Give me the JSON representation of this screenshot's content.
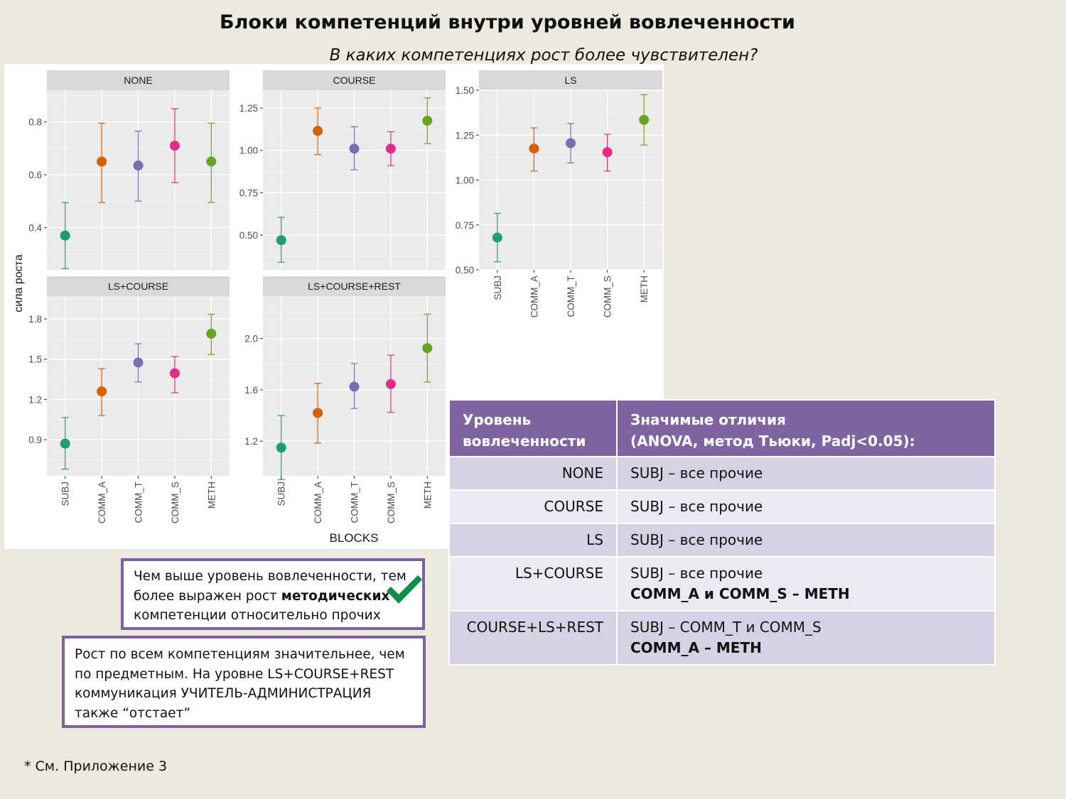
{
  "slide": {
    "title": "Блоки компетенций внутри уровней вовлеченности",
    "subtitle": "В каких компетенциях рост более чувствителен?",
    "footnote": "* См. Приложение 3"
  },
  "chart_data": {
    "type": "scatter",
    "subtype": "point-with-errorbars, faceted",
    "ylabel": "сила роста",
    "xlabel": "BLOCKS",
    "categories": [
      "SUBJ",
      "COMM_A",
      "COMM_T",
      "COMM_S",
      "METH"
    ],
    "colors": {
      "SUBJ": "#1b9e77",
      "COMM_A": "#d95f02",
      "COMM_T": "#7570b3",
      "COMM_S": "#e7298a",
      "METH": "#66a61e"
    },
    "grid": true,
    "facets": [
      {
        "name": "NONE",
        "ylim": [
          0.24,
          0.92
        ],
        "yticks": [
          "0.4",
          "0.6",
          "0.8"
        ],
        "means": [
          0.37,
          0.65,
          0.635,
          0.71,
          0.65
        ],
        "lower": [
          0.245,
          0.495,
          0.5,
          0.57,
          0.495
        ],
        "upper": [
          0.495,
          0.795,
          0.765,
          0.85,
          0.795
        ]
      },
      {
        "name": "COURSE",
        "ylim": [
          0.295,
          1.355
        ],
        "yticks": [
          "0.50",
          "0.75",
          "1.00",
          "1.25"
        ],
        "means": [
          0.47,
          1.115,
          1.01,
          1.01,
          1.175
        ],
        "lower": [
          0.34,
          0.975,
          0.885,
          0.91,
          1.04
        ],
        "upper": [
          0.605,
          1.25,
          1.14,
          1.11,
          1.31
        ]
      },
      {
        "name": "LS",
        "ylim": [
          0.5,
          1.5
        ],
        "yticks": [
          "0.50",
          "0.75",
          "1.00",
          "1.25",
          "1.50"
        ],
        "means": [
          0.68,
          1.175,
          1.205,
          1.155,
          1.335
        ],
        "lower": [
          0.545,
          1.05,
          1.095,
          1.05,
          1.195
        ],
        "upper": [
          0.815,
          1.29,
          1.315,
          1.255,
          1.475
        ]
      },
      {
        "name": "LS+COURSE",
        "ylim": [
          0.63,
          1.97
        ],
        "yticks": [
          "0.9",
          "1.2",
          "1.5",
          "1.8"
        ],
        "means": [
          0.87,
          1.26,
          1.475,
          1.395,
          1.69
        ],
        "lower": [
          0.68,
          1.08,
          1.33,
          1.25,
          1.535
        ],
        "upper": [
          1.065,
          1.43,
          1.615,
          1.52,
          1.835
        ]
      },
      {
        "name": "LS+COURSE+REST",
        "ylim": [
          0.93,
          2.33
        ],
        "yticks": [
          "1.2",
          "1.6",
          "2.0"
        ],
        "means": [
          1.15,
          1.42,
          1.625,
          1.645,
          1.925
        ],
        "lower": [
          0.9,
          1.185,
          1.455,
          1.425,
          1.66
        ],
        "upper": [
          1.4,
          1.65,
          1.805,
          1.87,
          2.19
        ]
      }
    ]
  },
  "table": {
    "header": {
      "col1": [
        "Уровень",
        "вовлеченности"
      ],
      "col2": [
        "Значимые отличия",
        "(ANOVA, метод Тьюки, Padj<0.05):"
      ]
    },
    "rows": [
      {
        "level": "NONE",
        "line1": "SUBJ – все прочие",
        "line2": ""
      },
      {
        "level": "COURSE",
        "line1": "SUBJ – все прочие",
        "line2": ""
      },
      {
        "level": "LS",
        "line1": "SUBJ – все прочие",
        "line2": ""
      },
      {
        "level": "LS+COURSE",
        "line1": "SUBJ – все прочие",
        "line2": "COMM_A и COMM_S – METH"
      },
      {
        "level": "COURSE+LS+REST",
        "line1": "SUBJ  – COMM_T и COMM_S",
        "line2": "COMM_A – METH"
      }
    ]
  },
  "notes": {
    "note1": {
      "line1": "Чем выше уровень вовлеченности, тем",
      "line2_a": "более выражен рост ",
      "line2_b": "методических",
      "line3": "компетенции относительно прочих"
    },
    "note2": [
      "Рост по всем компетенциям значительнее, чем",
      "по предметным. На уровне LS+COURSE+REST",
      "коммуникация  УЧИТЕЛЬ-АДМИНИСТРАЦИЯ",
      "также “отстает”"
    ]
  },
  "icons": {
    "check": "check-icon",
    "check_color": "#0a8f4b"
  }
}
